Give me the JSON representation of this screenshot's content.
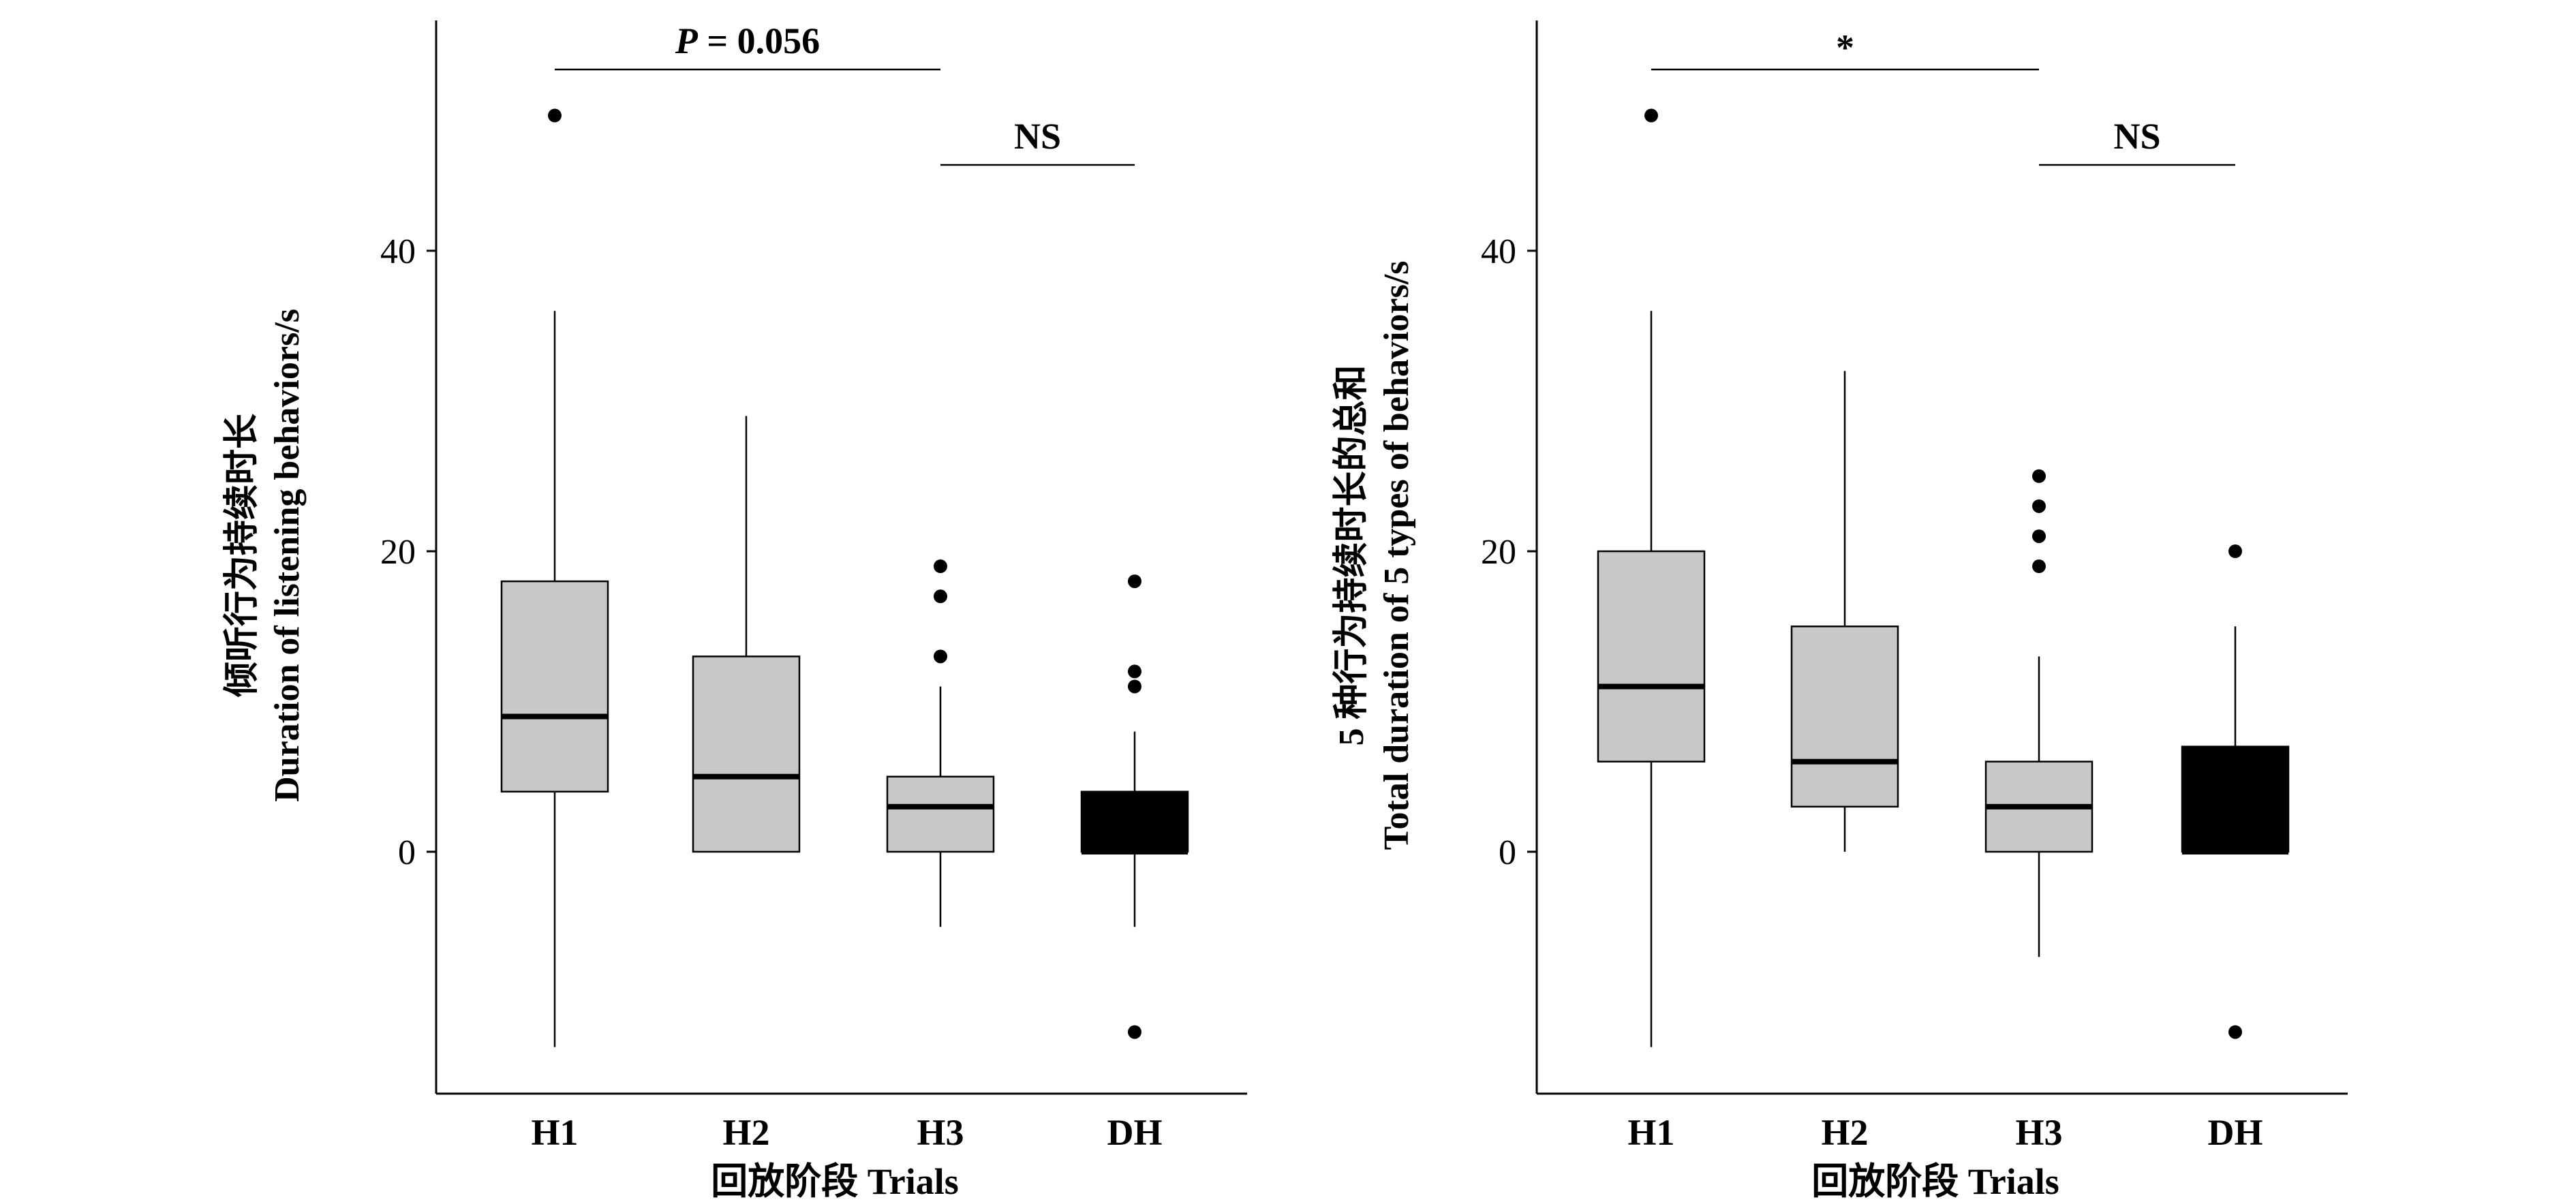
{
  "chart_data": [
    {
      "type": "box",
      "xlabel": "回放阶段 Trials",
      "ylabel_cn": "倾听行为持续时长",
      "ylabel_en": "Duration of listening behaviors/s",
      "yticks": [
        0,
        20,
        40
      ],
      "ylim": [
        -16,
        56
      ],
      "categories": [
        "H1",
        "H2",
        "H3",
        "DH"
      ],
      "boxes": [
        {
          "label": "H1",
          "whisker_low": -13,
          "q1": 4,
          "median": 9,
          "q3": 18,
          "whisker_high": 36,
          "outliers": [
            49
          ],
          "color": "#c8c8c8"
        },
        {
          "label": "H2",
          "whisker_low": 0,
          "q1": 0,
          "median": 5,
          "q3": 13,
          "whisker_high": 29,
          "outliers": [],
          "color": "#c8c8c8"
        },
        {
          "label": "H3",
          "whisker_low": -5,
          "q1": 0,
          "median": 3,
          "q3": 5,
          "whisker_high": 11,
          "outliers": [
            13,
            17,
            19
          ],
          "color": "#c8c8c8"
        },
        {
          "label": "DH",
          "whisker_low": -5,
          "q1": 0,
          "median": 0,
          "q3": 4,
          "whisker_high": 8,
          "outliers": [
            11,
            12,
            18,
            -12
          ],
          "color": "#000000"
        }
      ],
      "comparisons": [
        {
          "from": "H1",
          "to": "H3",
          "y": 52,
          "label_prefix": "P",
          "label": " = 0.056"
        },
        {
          "from": "H3",
          "to": "DH",
          "y": 46,
          "label": "NS"
        }
      ]
    },
    {
      "type": "box",
      "xlabel": "回放阶段 Trials",
      "ylabel_cn": "5 种行为持续时长的总和",
      "ylabel_en": "Total duration of 5 types of behaviors/s",
      "yticks": [
        0,
        20,
        40
      ],
      "ylim": [
        -16,
        56
      ],
      "categories": [
        "H1",
        "H2",
        "H3",
        "DH"
      ],
      "boxes": [
        {
          "label": "H1",
          "whisker_low": -13,
          "q1": 6,
          "median": 11,
          "q3": 20,
          "whisker_high": 36,
          "outliers": [
            49
          ],
          "color": "#c8c8c8"
        },
        {
          "label": "H2",
          "whisker_low": 0,
          "q1": 3,
          "median": 6,
          "q3": 15,
          "whisker_high": 32,
          "outliers": [],
          "color": "#c8c8c8"
        },
        {
          "label": "H3",
          "whisker_low": -7,
          "q1": 0,
          "median": 3,
          "q3": 6,
          "whisker_high": 13,
          "outliers": [
            19,
            21,
            23,
            25
          ],
          "color": "#c8c8c8"
        },
        {
          "label": "DH",
          "whisker_low": 0,
          "q1": 0,
          "median": 0,
          "q3": 7,
          "whisker_high": 15,
          "outliers": [
            20,
            -12
          ],
          "color": "#000000"
        }
      ],
      "comparisons": [
        {
          "from": "H1",
          "to": "H3",
          "y": 52,
          "label": "*"
        },
        {
          "from": "H3",
          "to": "DH",
          "y": 46,
          "label": "NS"
        }
      ]
    }
  ]
}
